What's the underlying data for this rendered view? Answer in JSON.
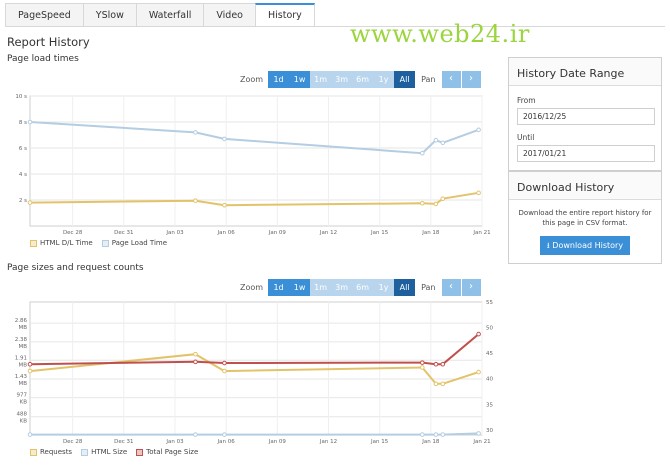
{
  "tabs": [
    {
      "label": "PageSpeed",
      "active": false
    },
    {
      "label": "YSlow",
      "active": false
    },
    {
      "label": "Waterfall",
      "active": false
    },
    {
      "label": "Video",
      "active": false
    },
    {
      "label": "History",
      "active": true
    }
  ],
  "watermark": "www.web24.ir",
  "report_title": "Report History",
  "controls": {
    "zoom_label": "Zoom",
    "zoom_options": [
      "1d",
      "1w",
      "1m",
      "3m",
      "6m",
      "1y",
      "All"
    ],
    "zoom_selected": "All",
    "pan_label": "Pan",
    "pan_prev": "‹",
    "pan_next": "›"
  },
  "date_range": {
    "title": "History Date Range",
    "from_label": "From",
    "from_value": "2016/12/25",
    "until_label": "Until",
    "until_value": "2017/01/21"
  },
  "download": {
    "title": "Download History",
    "description": "Download the entire report history for this page in CSV format.",
    "button_label": "Download History",
    "button_icon": "download-icon"
  },
  "chart_data": [
    {
      "type": "line",
      "title": "Page load times",
      "x_ticks": [
        "Dec 28",
        "Dec 31",
        "Jan 03",
        "Jan 06",
        "Jan 09",
        "Jan 12",
        "Jan 15",
        "Jan 18",
        "Jan 21"
      ],
      "x_range": [
        25.5,
        52.0
      ],
      "y_ticks": [
        {
          "value": 2,
          "label": "2 s"
        },
        {
          "value": 4,
          "label": "4 s"
        },
        {
          "value": 6,
          "label": "6 s"
        },
        {
          "value": 8,
          "label": "8 s"
        },
        {
          "value": 10,
          "label": "10 s"
        }
      ],
      "ylim": [
        0,
        10
      ],
      "legend": "bottom-left",
      "series": [
        {
          "name": "HTML D/L Time",
          "color": "#e3c36a",
          "points": [
            [
              25.5,
              1.8
            ],
            [
              35.2,
              1.95
            ],
            [
              36.9,
              1.6
            ],
            [
              48.5,
              1.75
            ],
            [
              49.3,
              1.7
            ],
            [
              49.7,
              2.1
            ],
            [
              51.8,
              2.55
            ]
          ]
        },
        {
          "name": "Page Load Time",
          "color": "#b4cde2",
          "points": [
            [
              25.5,
              8.0
            ],
            [
              35.2,
              7.2
            ],
            [
              36.9,
              6.7
            ],
            [
              48.5,
              5.6
            ],
            [
              49.3,
              6.6
            ],
            [
              49.7,
              6.4
            ],
            [
              51.8,
              7.4
            ]
          ]
        }
      ]
    },
    {
      "type": "line",
      "title": "Page sizes and request counts",
      "x_ticks": [
        "Dec 28",
        "Dec 31",
        "Jan 03",
        "Jan 06",
        "Jan 09",
        "Jan 12",
        "Jan 15",
        "Jan 18",
        "Jan 21"
      ],
      "x_range": [
        25.5,
        52.0
      ],
      "y_ticks_left": [
        {
          "value": 0.468,
          "label": "488 KB"
        },
        {
          "value": 0.954,
          "label": "977 KB"
        },
        {
          "value": 1.43,
          "label": "1.43 MB"
        },
        {
          "value": 1.91,
          "label": "1.91 MB"
        },
        {
          "value": 2.38,
          "label": "2.38 MB"
        },
        {
          "value": 2.86,
          "label": "2.86 MB"
        }
      ],
      "ylim_left": [
        0,
        3.4
      ],
      "y_ticks_right": [
        30,
        35,
        40,
        45,
        50,
        55
      ],
      "ylim_right": [
        29,
        55
      ],
      "legend": "bottom-left",
      "series": [
        {
          "name": "Requests",
          "color": "#e3c36a",
          "axis": "right",
          "points": [
            [
              25.5,
              41.5
            ],
            [
              35.2,
              44.8
            ],
            [
              36.9,
              41.5
            ],
            [
              48.5,
              42.2
            ],
            [
              49.3,
              39.0
            ],
            [
              49.7,
              39.0
            ],
            [
              51.8,
              41.3
            ]
          ]
        },
        {
          "name": "HTML Size",
          "color": "#b4cde2",
          "axis": "left",
          "points": [
            [
              25.5,
              0.01
            ],
            [
              35.2,
              0.01
            ],
            [
              36.9,
              0.01
            ],
            [
              48.5,
              0.01
            ],
            [
              49.3,
              0.01
            ],
            [
              49.7,
              0.01
            ],
            [
              51.8,
              0.04
            ]
          ]
        },
        {
          "name": "Total Page Size",
          "color": "#c0504d",
          "axis": "left",
          "points": [
            [
              25.5,
              1.81
            ],
            [
              35.2,
              1.87
            ],
            [
              36.9,
              1.84
            ],
            [
              48.5,
              1.85
            ],
            [
              49.3,
              1.81
            ],
            [
              49.7,
              1.81
            ],
            [
              51.8,
              2.58
            ]
          ]
        }
      ]
    }
  ]
}
